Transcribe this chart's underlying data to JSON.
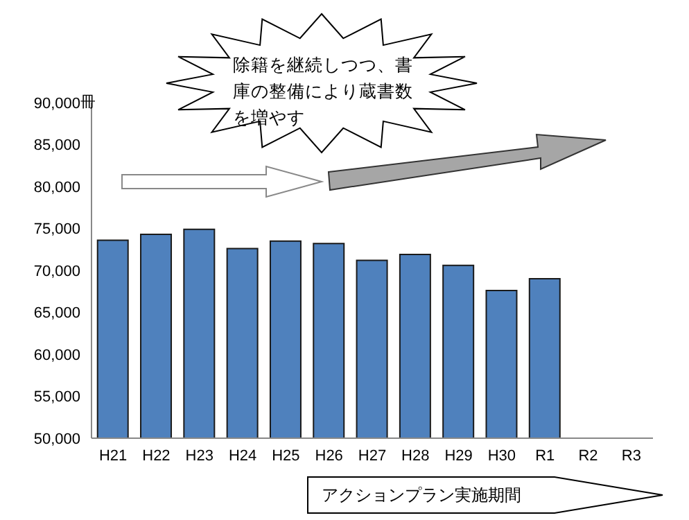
{
  "chart_data": {
    "type": "bar",
    "categories": [
      "H21",
      "H22",
      "H23",
      "H24",
      "H25",
      "H26",
      "H27",
      "H28",
      "H29",
      "H30",
      "R1",
      "R2",
      "R3"
    ],
    "values": [
      73600,
      74300,
      74900,
      72600,
      73500,
      73200,
      71200,
      71900,
      70600,
      67600,
      69000,
      null,
      null
    ],
    "color": "#4f81bd",
    "ylim": [
      50000,
      90000
    ],
    "yticks": [
      {
        "value": 50000,
        "label": "50,000"
      },
      {
        "value": 55000,
        "label": "55,000"
      },
      {
        "value": 60000,
        "label": "60,000"
      },
      {
        "value": 65000,
        "label": "65,000"
      },
      {
        "value": 70000,
        "label": "70,000"
      },
      {
        "value": 75000,
        "label": "75,000"
      },
      {
        "value": 80000,
        "label": "80,000"
      },
      {
        "value": 85000,
        "label": "85,000"
      },
      {
        "value": 90000,
        "label": "90,000"
      }
    ],
    "grid": false,
    "legend": false,
    "annotations": [
      "冊",
      "除籍を継続しつつ、書庫の整備により蔵書数を増やす",
      "アクションプラン実施期間"
    ]
  }
}
